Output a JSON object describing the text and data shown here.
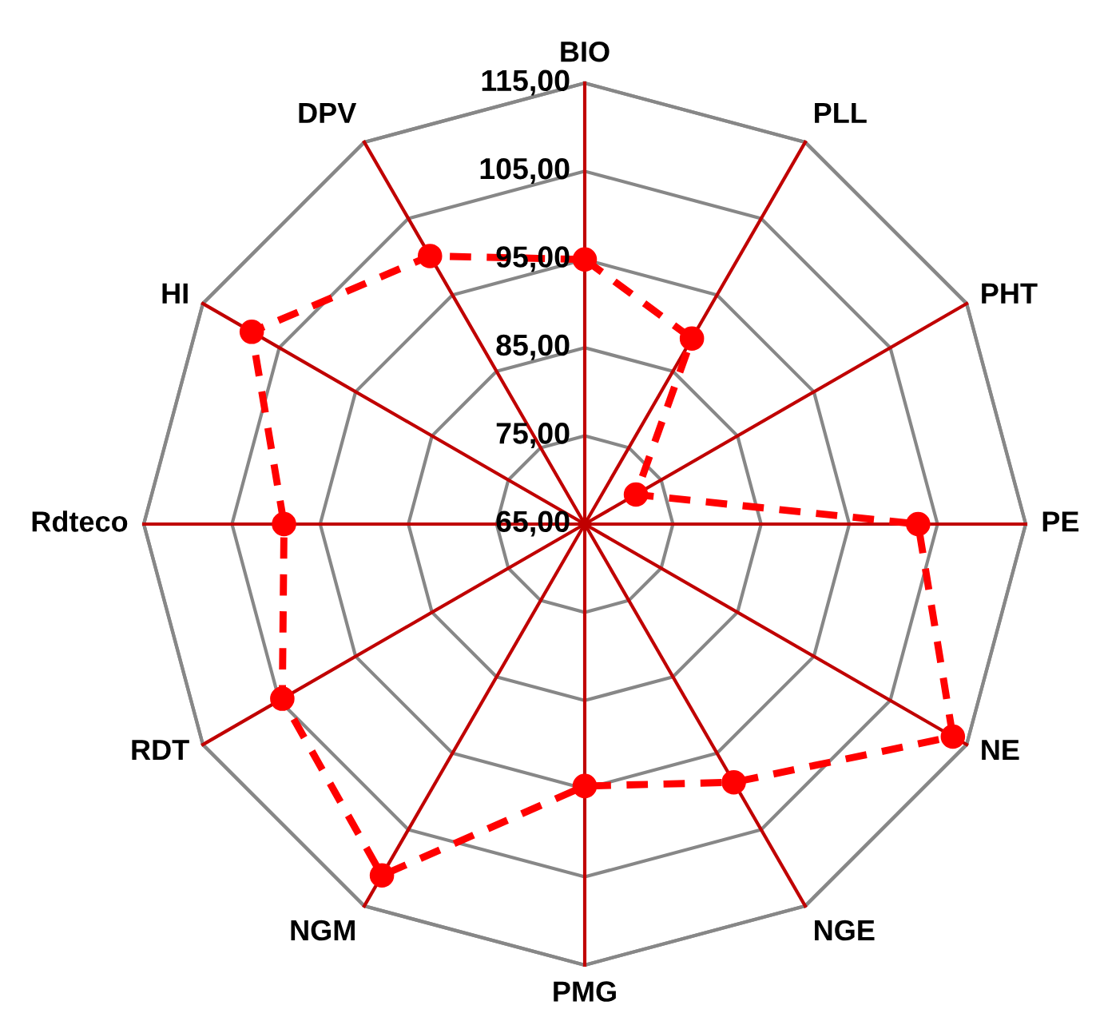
{
  "chart_data": {
    "type": "radar",
    "categories": [
      "BIO",
      "PLL",
      "PHT",
      "PE",
      "NE",
      "NGE",
      "PMG",
      "NGM",
      "RDT",
      "Rdteco",
      "HI",
      "DPV"
    ],
    "series": [
      {
        "color": "#ff0000",
        "values": [
          95.0,
          89.3,
          71.7,
          102.8,
          113.2,
          98.8,
          94.7,
          111.0,
          104.6,
          99.1,
          108.6,
          100.1
        ]
      }
    ],
    "ylim": [
      65,
      115
    ],
    "yticks": [
      {
        "value": 65,
        "label": "65,00"
      },
      {
        "value": 75,
        "label": "75,00"
      },
      {
        "value": 85,
        "label": "85,00"
      },
      {
        "value": 95,
        "label": "95,00"
      },
      {
        "value": 105,
        "label": "105,00"
      },
      {
        "value": 115,
        "label": "115,00"
      }
    ],
    "grid": true,
    "marker": "circle",
    "line_style": "dashed"
  }
}
